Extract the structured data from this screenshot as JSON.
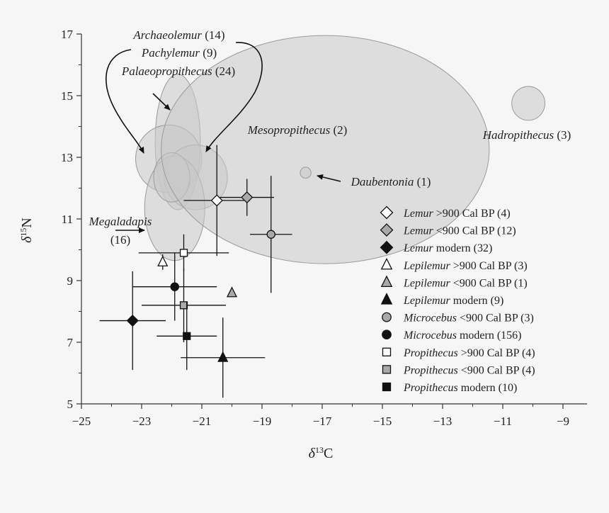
{
  "chart_data": {
    "type": "scatter",
    "xlabel": "δ13C",
    "ylabel": "δ15N",
    "xlabel_main": "δ",
    "xlabel_sup": "13",
    "xlabel_tail": "C",
    "ylabel_main": "δ",
    "ylabel_sup": "15",
    "ylabel_tail": "N",
    "xlim": [
      -25,
      -8.2
    ],
    "ylim": [
      5,
      17
    ],
    "xticks": [
      -25,
      -23,
      -21,
      -19,
      -17,
      -15,
      -13,
      -11,
      -9
    ],
    "xtick_labels": [
      "−25",
      "−23",
      "−21",
      "−19",
      "−17",
      "−15",
      "−13",
      "−11",
      "−9"
    ],
    "yticks": [
      5,
      7,
      9,
      11,
      13,
      15,
      17
    ],
    "ytick_labels": [
      "5",
      "7",
      "9",
      "11",
      "13",
      "15",
      "17"
    ],
    "ellipses": [
      {
        "cx": -21.8,
        "cy": 13.5,
        "rx": 0.75,
        "ry": 2.2
      },
      {
        "cx": -22.1,
        "cy": 12.95,
        "rx": 1.1,
        "ry": 1.1
      },
      {
        "cx": -21.2,
        "cy": 12.35,
        "rx": 1.05,
        "ry": 1.05
      },
      {
        "cx": -21.9,
        "cy": 11.35,
        "rx": 1.0,
        "ry": 1.7
      },
      {
        "cx": -22.0,
        "cy": 12.35,
        "rx": 0.6,
        "ry": 0.8
      },
      {
        "cx": -16.9,
        "cy": 13.25,
        "rx": 5.45,
        "ry": 3.7
      },
      {
        "cx": -17.55,
        "cy": 12.5,
        "rx": 0.18,
        "ry": 0.18
      },
      {
        "cx": -10.15,
        "cy": 14.75,
        "rx": 0.55,
        "ry": 0.55
      }
    ],
    "points": [
      {
        "x": -20.5,
        "y": 11.6,
        "xerr": 1.1,
        "yerr": 1.8,
        "marker": "diamond",
        "fill": "open"
      },
      {
        "x": -19.5,
        "y": 11.7,
        "xerr": 0.9,
        "yerr": 0.6,
        "marker": "diamond",
        "fill": "gray"
      },
      {
        "x": -23.3,
        "y": 7.7,
        "xerr": 1.1,
        "yerr": 1.6,
        "marker": "diamond",
        "fill": "black"
      },
      {
        "x": -22.3,
        "y": 9.6,
        "xerr": 0,
        "yerr": 0.25,
        "marker": "triangle",
        "fill": "open"
      },
      {
        "x": -20.0,
        "y": 8.6,
        "xerr": 0,
        "yerr": 0,
        "marker": "triangle",
        "fill": "gray"
      },
      {
        "x": -20.3,
        "y": 6.5,
        "xerr": 1.4,
        "yerr": 1.3,
        "marker": "triangle",
        "fill": "black"
      },
      {
        "x": -18.7,
        "y": 10.5,
        "xerr": 0.7,
        "yerr": 1.9,
        "marker": "circle",
        "fill": "gray"
      },
      {
        "x": -21.9,
        "y": 8.8,
        "xerr": 1.4,
        "yerr": 1.1,
        "marker": "circle",
        "fill": "black"
      },
      {
        "x": -21.6,
        "y": 9.9,
        "xerr": 1.5,
        "yerr": 0.6,
        "marker": "square",
        "fill": "open"
      },
      {
        "x": -21.6,
        "y": 8.2,
        "xerr": 1.4,
        "yerr": 1.2,
        "marker": "square",
        "fill": "gray"
      },
      {
        "x": -21.5,
        "y": 7.2,
        "xerr": 1.0,
        "yerr": 1.1,
        "marker": "square",
        "fill": "black"
      }
    ],
    "annotations": [
      {
        "italic": "Archaeolemur",
        "plain": " (14)"
      },
      {
        "italic": "Pachylemur",
        "plain": "  (9)"
      },
      {
        "italic": "Palaeopropithecus",
        "plain": " (24)"
      },
      {
        "italic": "Mesopropithecus",
        "plain": " (2)"
      },
      {
        "italic": "Daubentonia",
        "plain": " (1)"
      },
      {
        "italic": "Hadropithecus",
        "plain": " (3)"
      },
      {
        "italic": "Megaladapis",
        "plain": ""
      },
      {
        "italic": "",
        "plain": "(16)"
      }
    ],
    "legend_position": "right",
    "legend": [
      {
        "marker": "diamond",
        "fill": "open",
        "italic": "Lemur",
        "plain": " >900 Cal BP (4)"
      },
      {
        "marker": "diamond",
        "fill": "gray",
        "italic": "Lemur",
        "plain": " <900 Cal BP (12)"
      },
      {
        "marker": "diamond",
        "fill": "black",
        "italic": "Lemur",
        "plain": " modern (32)"
      },
      {
        "marker": "triangle",
        "fill": "open",
        "italic": "Lepilemur",
        "plain": " >900 Cal BP (3)"
      },
      {
        "marker": "triangle",
        "fill": "gray",
        "italic": "Lepilemur",
        "plain": " <900 Cal BP (1)"
      },
      {
        "marker": "triangle",
        "fill": "black",
        "italic": "Lepilemur",
        "plain": " modern (9)"
      },
      {
        "marker": "circle",
        "fill": "gray",
        "italic": "Microcebus",
        "plain": " <900 Cal BP (3)"
      },
      {
        "marker": "circle",
        "fill": "black",
        "italic": "Microcebus",
        "plain": " modern (156)"
      },
      {
        "marker": "square",
        "fill": "open",
        "italic": "Propithecus",
        "plain": " >900 Cal BP (4)"
      },
      {
        "marker": "square",
        "fill": "gray",
        "italic": "Propithecus",
        "plain": "  <900 Cal BP (4)"
      },
      {
        "marker": "square",
        "fill": "black",
        "italic": "Propithecus",
        "plain": " modern (10)"
      }
    ],
    "colors": {
      "open": "#ffffff",
      "gray": "#a9a9a9",
      "black": "#111111",
      "ellipse_fill": "#c9c9c9",
      "ellipse_stroke": "#9a9a9a"
    }
  }
}
